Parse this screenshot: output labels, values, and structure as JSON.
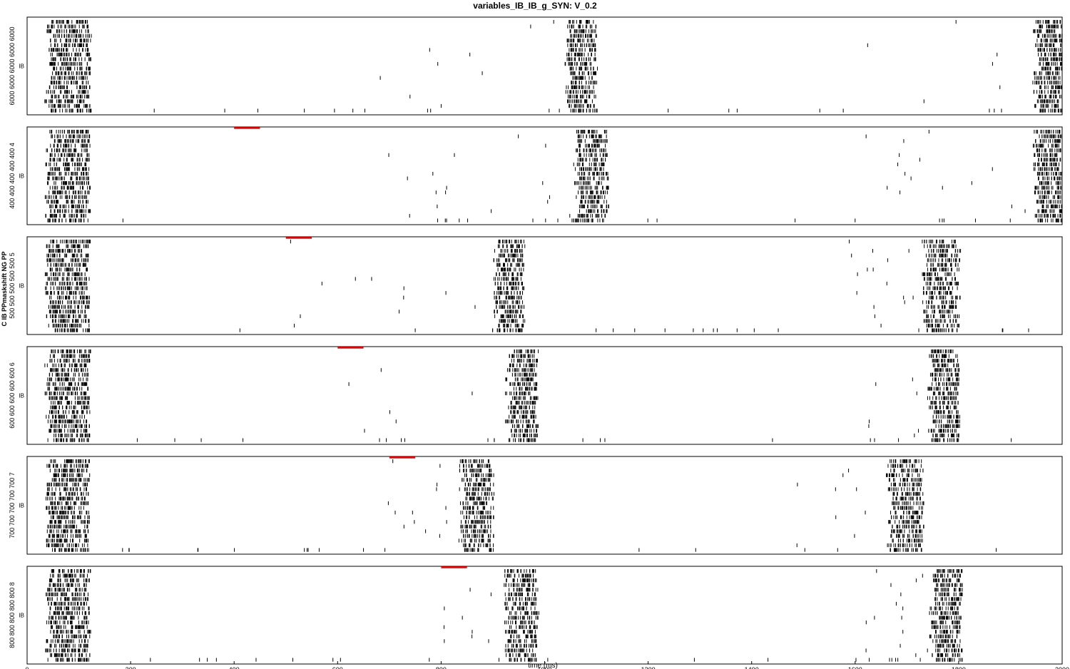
{
  "title": "variables_IB_IB_g_SYN: V_0.2",
  "chart_data": {
    "type": "scatter",
    "subtype": "spike raster (6 stacked panels, shared x-axis)",
    "title": "variables_IB_IB_g_SYN: V_0.2",
    "xlabel": "time (ms)",
    "xlim": [
      0,
      2000
    ],
    "xticks": [
      0,
      200,
      400,
      600,
      800,
      1000,
      1200,
      1400,
      1600,
      1800,
      2000
    ],
    "spine_label": "C IB PPmaskshift NG PP",
    "marker": "short vertical tick",
    "colors": {
      "spikes": "#000000",
      "stim_bar": "#ff0000"
    },
    "panels": [
      {
        "ylabel": "IB",
        "side_label": "6000 6000 6000 6000 6000",
        "stim": null,
        "bursts": [
          {
            "start": 40,
            "end": 120,
            "pre": 0
          },
          {
            "start": 1045,
            "end": 1100,
            "pre": 360
          },
          {
            "start": 1950,
            "end": 2000,
            "pre": 320
          }
        ]
      },
      {
        "ylabel": "IB",
        "side_label": "400 400 400 400 400 4",
        "stim": [
          400,
          450
        ],
        "bursts": [
          {
            "start": 40,
            "end": 120,
            "pre": 0
          },
          {
            "start": 1060,
            "end": 1120,
            "pre": 360
          },
          {
            "start": 1950,
            "end": 2000,
            "pre": 320
          }
        ]
      },
      {
        "ylabel": "IB",
        "side_label": "500 500 500 500 500 5",
        "stim": [
          500,
          550
        ],
        "bursts": [
          {
            "start": 40,
            "end": 120,
            "pre": 0
          },
          {
            "start": 905,
            "end": 960,
            "pre": 400
          },
          {
            "start": 1735,
            "end": 1800,
            "pre": 140
          }
        ]
      },
      {
        "ylabel": "IB",
        "side_label": "600 600 600 600 600 6",
        "stim": [
          600,
          650
        ],
        "bursts": [
          {
            "start": 40,
            "end": 120,
            "pre": 0
          },
          {
            "start": 930,
            "end": 985,
            "pre": 340
          },
          {
            "start": 1745,
            "end": 1800,
            "pre": 120
          }
        ]
      },
      {
        "ylabel": "IB",
        "side_label": "700 700 700 700 700 7",
        "stim": [
          700,
          750
        ],
        "bursts": [
          {
            "start": 40,
            "end": 120,
            "pre": 0
          },
          {
            "start": 840,
            "end": 900,
            "pre": 140
          },
          {
            "start": 1665,
            "end": 1730,
            "pre": 180
          }
        ]
      },
      {
        "ylabel": "IB",
        "side_label": "800 800 800 800 800 8",
        "stim": [
          800,
          850
        ],
        "bursts": [
          {
            "start": 40,
            "end": 120,
            "pre": 0
          },
          {
            "start": 925,
            "end": 985,
            "pre": 120
          },
          {
            "start": 1750,
            "end": 1805,
            "pre": 120
          }
        ]
      }
    ]
  }
}
